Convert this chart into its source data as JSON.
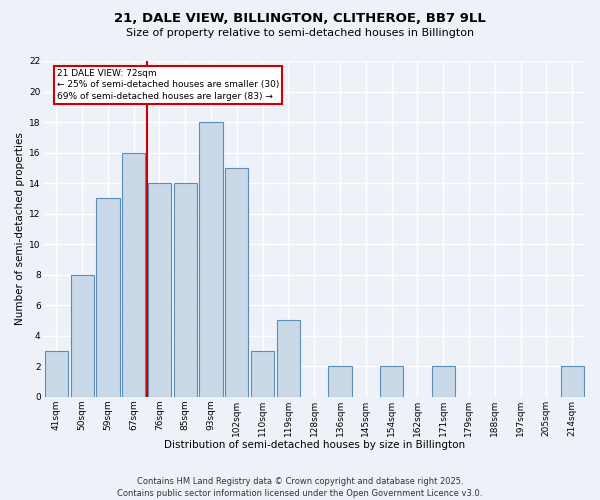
{
  "title1": "21, DALE VIEW, BILLINGTON, CLITHEROE, BB7 9LL",
  "title2": "Size of property relative to semi-detached houses in Billington",
  "xlabel": "Distribution of semi-detached houses by size in Billington",
  "ylabel": "Number of semi-detached properties",
  "categories": [
    "41sqm",
    "50sqm",
    "59sqm",
    "67sqm",
    "76sqm",
    "85sqm",
    "93sqm",
    "102sqm",
    "110sqm",
    "119sqm",
    "128sqm",
    "136sqm",
    "145sqm",
    "154sqm",
    "162sqm",
    "171sqm",
    "179sqm",
    "188sqm",
    "197sqm",
    "205sqm",
    "214sqm"
  ],
  "values": [
    3,
    8,
    13,
    16,
    14,
    14,
    18,
    15,
    3,
    5,
    0,
    2,
    0,
    2,
    0,
    2,
    0,
    0,
    0,
    0,
    2
  ],
  "bar_color": "#c9d9e8",
  "bar_edge_color": "#5b8db8",
  "background_color": "#eef2f8",
  "grid_color": "#ffffff",
  "vline_x": 3.5,
  "vline_color": "#cc0000",
  "annotation_text": "21 DALE VIEW: 72sqm\n← 25% of semi-detached houses are smaller (30)\n69% of semi-detached houses are larger (83) →",
  "annotation_box_color": "#cc0000",
  "ylim": [
    0,
    22
  ],
  "yticks": [
    0,
    2,
    4,
    6,
    8,
    10,
    12,
    14,
    16,
    18,
    20,
    22
  ],
  "footer": "Contains HM Land Registry data © Crown copyright and database right 2025.\nContains public sector information licensed under the Open Government Licence v3.0.",
  "title1_fontsize": 9.5,
  "title2_fontsize": 8.0,
  "xlabel_fontsize": 7.5,
  "ylabel_fontsize": 7.5,
  "tick_fontsize": 6.5,
  "footer_fontsize": 6.0
}
